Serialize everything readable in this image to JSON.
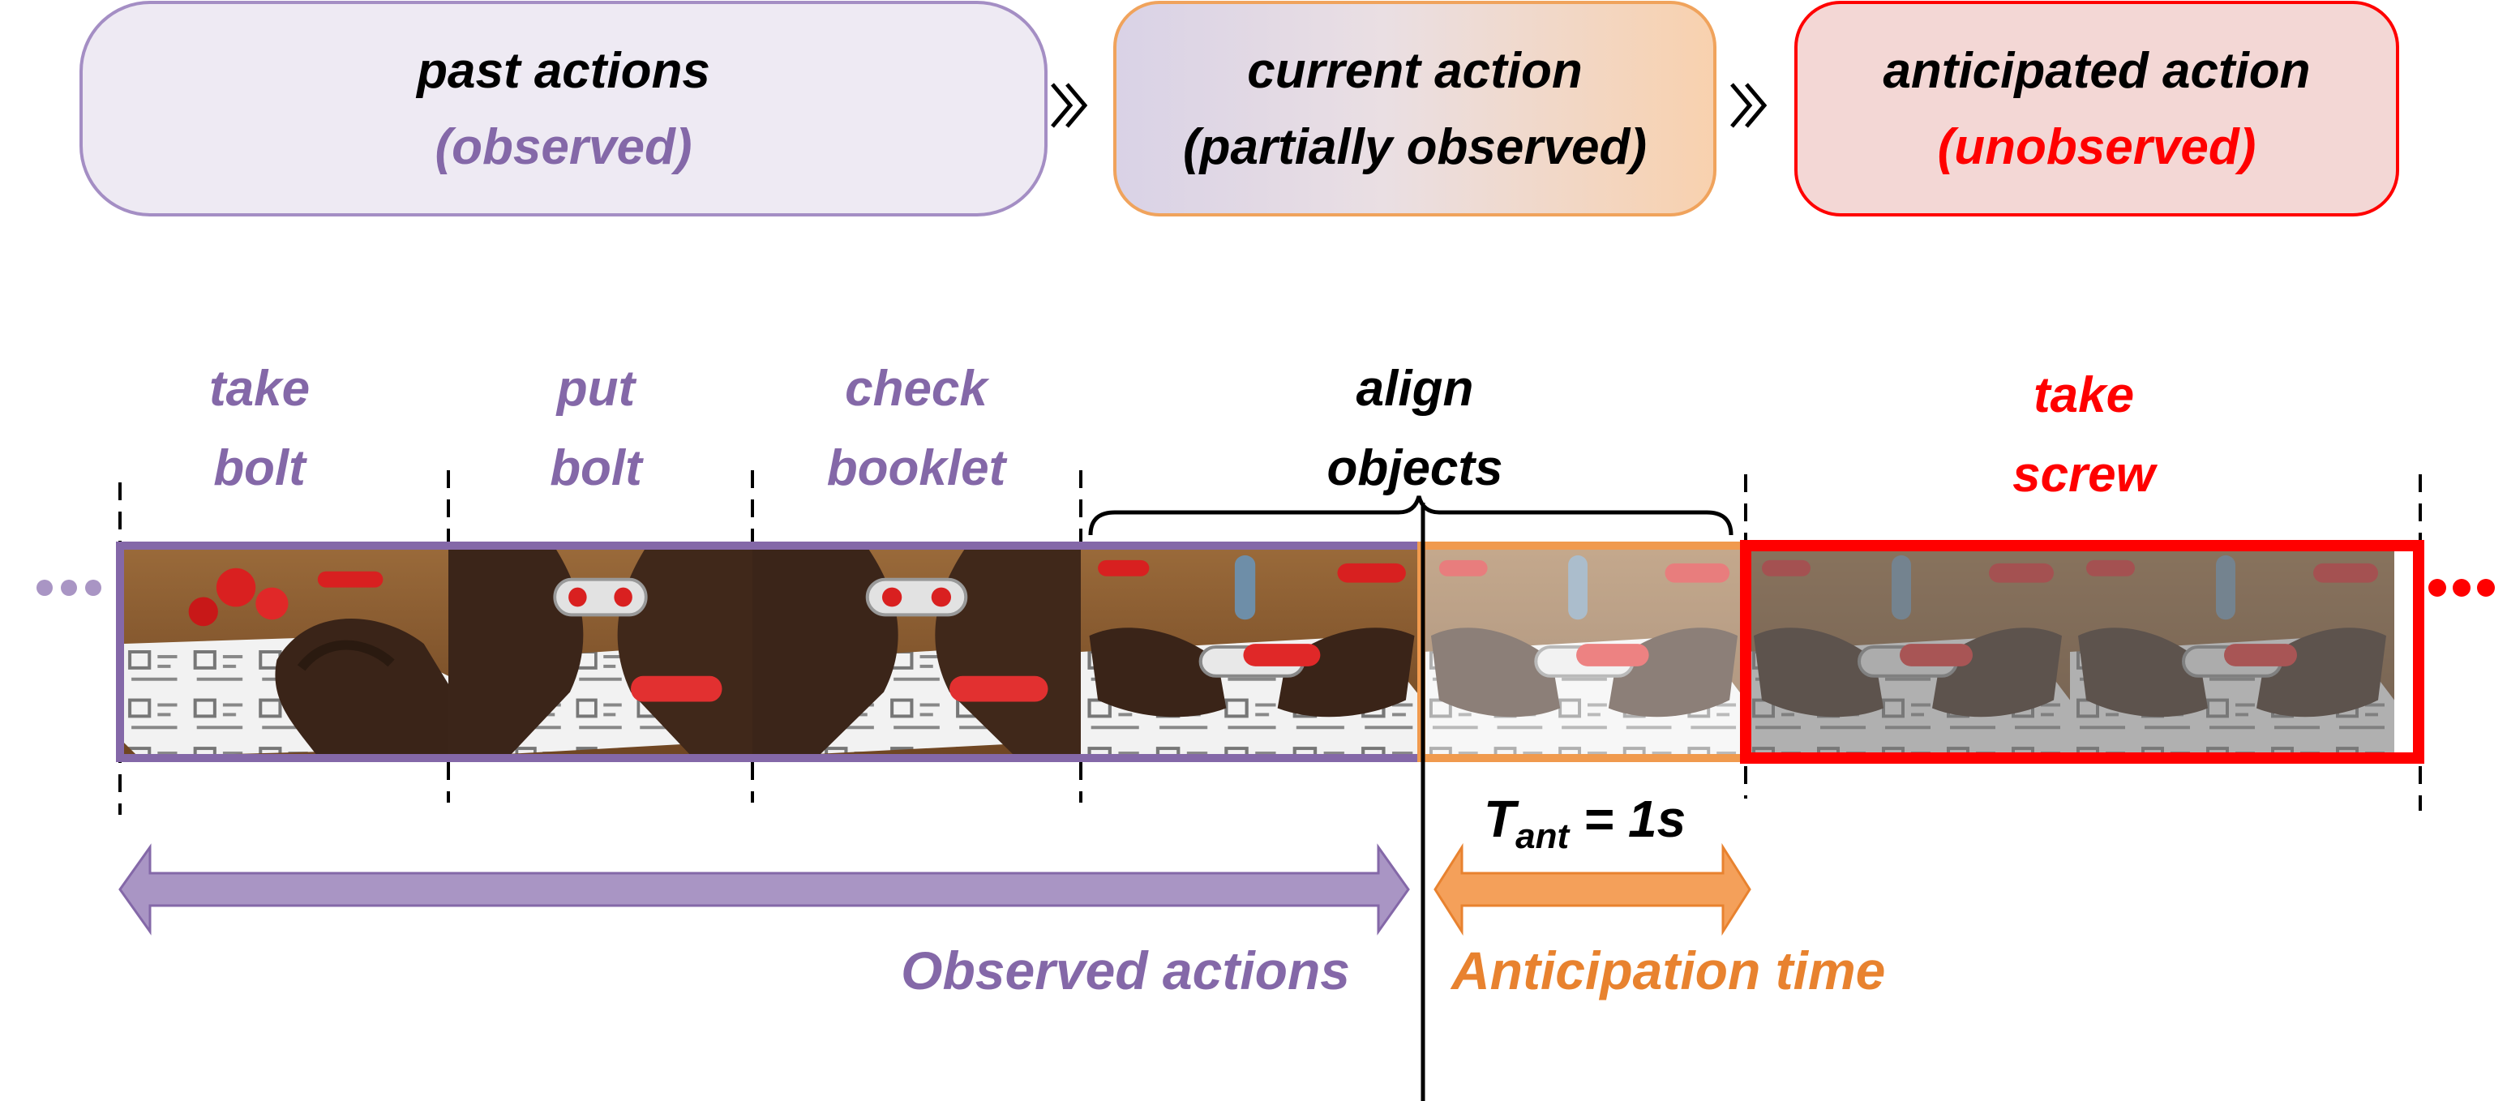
{
  "header": {
    "past": {
      "title": "past actions",
      "subtitle": "(observed)"
    },
    "current": {
      "title": "current action",
      "subtitle": "(partially observed)"
    },
    "anticipated": {
      "title": "anticipated action",
      "subtitle": "(unobserved)"
    }
  },
  "actions": {
    "take_bolt": [
      "take",
      "bolt"
    ],
    "put_bolt": [
      "put",
      "bolt"
    ],
    "check_booklet": [
      "check",
      "booklet"
    ],
    "align_objects": [
      "align",
      "objects"
    ],
    "take_screw": [
      "take",
      "screw"
    ]
  },
  "ellipsis": "•••",
  "tant": {
    "main": "T",
    "sub": "ant",
    "rest": " = 1s"
  },
  "observed_label": "Observed actions",
  "anticipation_label": "Anticipation time",
  "colors": {
    "purple": "#8468A8",
    "purple_box_fill": "#EEEAF3",
    "purple_arrow": "#A995C4",
    "orange": "#F09A4E",
    "orange_arrow": "#F4A05A",
    "orange_text": "#E8822F",
    "red": "#FF0000",
    "red_box_fill": "#F3D7D5",
    "black": "#000000"
  },
  "icons": [
    "chevron-right-icon",
    "chevron-right-icon"
  ]
}
